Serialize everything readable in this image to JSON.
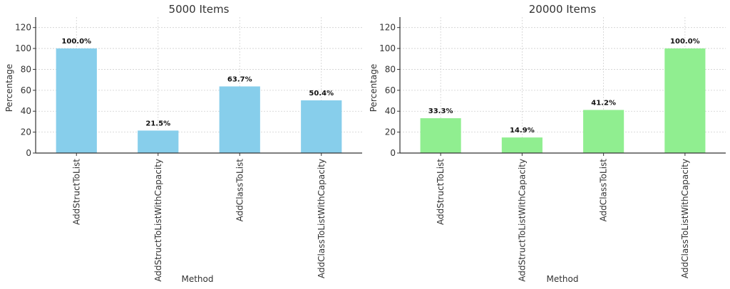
{
  "chart_data": [
    {
      "type": "bar",
      "title": "5000 Items",
      "xlabel": "Method",
      "ylabel": "Percentage",
      "ylim": [
        0,
        130
      ],
      "yticks": [
        0,
        20,
        40,
        60,
        80,
        100,
        120
      ],
      "grid": true,
      "color": "#87CEEB",
      "categories": [
        "AddStructToList",
        "AddStructToListWithCapacity",
        "AddClassToList",
        "AddClassToListWithCapacity"
      ],
      "values": [
        100.0,
        21.5,
        63.7,
        50.4
      ],
      "data_labels": [
        "100.0%",
        "21.5%",
        "63.7%",
        "50.4%"
      ]
    },
    {
      "type": "bar",
      "title": "20000 Items",
      "xlabel": "Method",
      "ylabel": "Percentage",
      "ylim": [
        0,
        130
      ],
      "yticks": [
        0,
        20,
        40,
        60,
        80,
        100,
        120
      ],
      "grid": true,
      "color": "#90EE90",
      "categories": [
        "AddStructToList",
        "AddStructToListWithCapacity",
        "AddClassToList",
        "AddClassToListWithCapacity"
      ],
      "values": [
        33.3,
        14.9,
        41.2,
        100.0
      ],
      "data_labels": [
        "33.3%",
        "14.9%",
        "41.2%",
        "100.0%"
      ]
    }
  ]
}
